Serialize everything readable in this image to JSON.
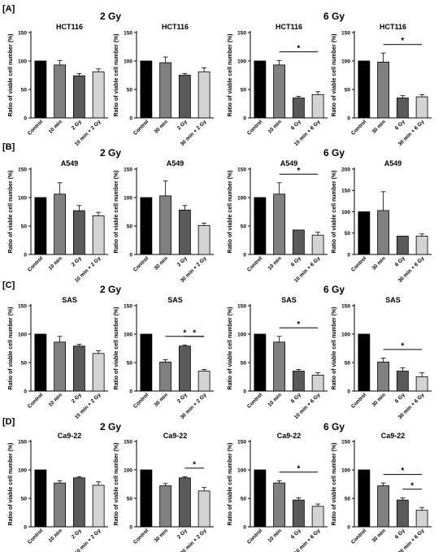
{
  "panels": [
    {
      "label": "[A]",
      "dose_left": "2 Gy",
      "dose_right": "6 Gy"
    },
    {
      "label": "[B]",
      "dose_left": "2 Gy",
      "dose_right": "6 Gy"
    },
    {
      "label": "[C]",
      "dose_left": "2 Gy",
      "dose_right": "6 Gy"
    },
    {
      "label": "[D]",
      "dose_left": "2 Gy",
      "dose_right": "6 Gy"
    }
  ],
  "colors": {
    "bars": [
      "#000000",
      "#808080",
      "#5a5a5a",
      "#d3d3d3"
    ]
  },
  "chart_data": [
    {
      "type": "bar",
      "title": "HCT116",
      "ylabel": "Ratio of viable cell number (%)",
      "ylim": [
        0,
        150
      ],
      "yticks": [
        0,
        50,
        100,
        150
      ],
      "categories": [
        "Control",
        "10 min",
        "2 Gy",
        "10 min + 2 Gy"
      ],
      "values": [
        100,
        93,
        74,
        81
      ],
      "errors": [
        0,
        8,
        4,
        5
      ],
      "significance": []
    },
    {
      "type": "bar",
      "title": "HCT116",
      "ylabel": "Ratio of viable cell number (%)",
      "ylim": [
        0,
        150
      ],
      "yticks": [
        0,
        50,
        100,
        150
      ],
      "categories": [
        "Control",
        "30 min",
        "2 Gy",
        "30 min + 2 Gy"
      ],
      "values": [
        100,
        97,
        75,
        81
      ],
      "errors": [
        0,
        10,
        3,
        7
      ],
      "significance": []
    },
    {
      "type": "bar",
      "title": "HCT116",
      "ylabel": "Ratio of viable cell number (%)",
      "ylim": [
        0,
        150
      ],
      "yticks": [
        0,
        50,
        100,
        150
      ],
      "categories": [
        "Control",
        "10 min",
        "6 Gy",
        "10 min + 6 Gy"
      ],
      "values": [
        100,
        93,
        35,
        41
      ],
      "errors": [
        0,
        8,
        3,
        5
      ],
      "significance": [
        {
          "from": 1,
          "to": 3,
          "label": "*"
        }
      ]
    },
    {
      "type": "bar",
      "title": "HCT116",
      "ylabel": "Ratio of viable cell number (%)",
      "ylim": [
        0,
        150
      ],
      "yticks": [
        0,
        50,
        100,
        150
      ],
      "categories": [
        "Control",
        "30 min",
        "6 Gy",
        "30 min + 6 Gy"
      ],
      "values": [
        100,
        98,
        35,
        37
      ],
      "errors": [
        0,
        16,
        4,
        4
      ],
      "significance": [
        {
          "from": 1,
          "to": 3,
          "label": "*"
        }
      ]
    },
    {
      "type": "bar",
      "title": "A549",
      "ylabel": "Ratio of viable cell number (%)",
      "ylim": [
        0,
        150
      ],
      "yticks": [
        0,
        50,
        100,
        150
      ],
      "categories": [
        "Control",
        "10 min",
        "2 Gy",
        "10 min + 2 Gy"
      ],
      "values": [
        100,
        106,
        77,
        68
      ],
      "errors": [
        0,
        20,
        9,
        6
      ],
      "significance": []
    },
    {
      "type": "bar",
      "title": "A549",
      "ylabel": "Ratio of viable cell number (%)",
      "ylim": [
        0,
        150
      ],
      "yticks": [
        0,
        50,
        100,
        150
      ],
      "categories": [
        "Control",
        "30 min",
        "2 Gy",
        "30 min + 2 Gy"
      ],
      "values": [
        100,
        103,
        78,
        51
      ],
      "errors": [
        0,
        26,
        8,
        4
      ],
      "significance": []
    },
    {
      "type": "bar",
      "title": "A549",
      "ylabel": "Ratio of viable cell number (%)",
      "ylim": [
        0,
        150
      ],
      "yticks": [
        0,
        50,
        100,
        150
      ],
      "categories": [
        "Control",
        "10 min",
        "6 Gy",
        "10 min + 6 Gy"
      ],
      "values": [
        100,
        106,
        43,
        34
      ],
      "errors": [
        0,
        20,
        0,
        5
      ],
      "significance": [
        {
          "from": 1,
          "to": 3,
          "label": "*"
        }
      ]
    },
    {
      "type": "bar",
      "title": "A549",
      "ylabel": "Ratio of viable cell number (%)",
      "ylim": [
        0,
        200
      ],
      "yticks": [
        0,
        50,
        100,
        150,
        200
      ],
      "categories": [
        "Control",
        "30 min",
        "6 Gy",
        "30 min + 6 Gy"
      ],
      "values": [
        100,
        103,
        43,
        43
      ],
      "errors": [
        0,
        44,
        0,
        5
      ],
      "significance": []
    },
    {
      "type": "bar",
      "title": "SAS",
      "ylabel": "Ratio of viable cell number (%)",
      "ylim": [
        0,
        150
      ],
      "yticks": [
        0,
        50,
        100,
        150
      ],
      "categories": [
        "Control",
        "10 min",
        "2 Gy",
        "10 min + 2 Gy"
      ],
      "values": [
        100,
        86,
        79,
        66
      ],
      "errors": [
        0,
        10,
        3,
        5
      ],
      "significance": []
    },
    {
      "type": "bar",
      "title": "SAS",
      "ylabel": "Ratio of viable cell number (%)",
      "ylim": [
        0,
        150
      ],
      "yticks": [
        0,
        50,
        100,
        150
      ],
      "categories": [
        "Control",
        "30 min",
        "2 Gy",
        "30 min + 2 Gy"
      ],
      "values": [
        100,
        51,
        79,
        35
      ],
      "errors": [
        0,
        4,
        2,
        3
      ],
      "significance": [
        {
          "from": 1,
          "to": 3,
          "label": "*"
        },
        {
          "from": 2,
          "to": 3,
          "label": "*"
        }
      ]
    },
    {
      "type": "bar",
      "title": "SAS",
      "ylabel": "Ratio of viable cell number (%)",
      "ylim": [
        0,
        150
      ],
      "yticks": [
        0,
        50,
        100,
        150
      ],
      "categories": [
        "Control",
        "10 min",
        "6 Gy",
        "10 min + 6 Gy"
      ],
      "values": [
        100,
        86,
        35,
        28
      ],
      "errors": [
        0,
        10,
        3,
        4
      ],
      "significance": [
        {
          "from": 1,
          "to": 3,
          "label": "*"
        }
      ]
    },
    {
      "type": "bar",
      "title": "SAS",
      "ylabel": "Ratio of viable cell number (%)",
      "ylim": [
        0,
        150
      ],
      "yticks": [
        0,
        50,
        100,
        150
      ],
      "categories": [
        "Control",
        "30 min",
        "6 Gy",
        "30 min + 6 Gy"
      ],
      "values": [
        100,
        51,
        35,
        25
      ],
      "errors": [
        0,
        7,
        6,
        7
      ],
      "significance": [
        {
          "from": 1,
          "to": 3,
          "label": "*"
        }
      ]
    },
    {
      "type": "bar",
      "title": "Ca9-22",
      "ylabel": "Ratio of viable cell number (%)",
      "ylim": [
        0,
        150
      ],
      "yticks": [
        0,
        50,
        100,
        150
      ],
      "categories": [
        "Control",
        "10 min",
        "2 Gy",
        "10 min + 2 Gy"
      ],
      "values": [
        100,
        77,
        86,
        73
      ],
      "errors": [
        0,
        4,
        2,
        6
      ],
      "significance": []
    },
    {
      "type": "bar",
      "title": "Ca9-22",
      "ylabel": "Ratio of viable cell number (%)",
      "ylim": [
        0,
        150
      ],
      "yticks": [
        0,
        50,
        100,
        150
      ],
      "categories": [
        "Control",
        "30 min",
        "2 Gy",
        "30 min + 2 Gy"
      ],
      "values": [
        100,
        72,
        86,
        63
      ],
      "errors": [
        0,
        4,
        2,
        6
      ],
      "significance": [
        {
          "from": 2,
          "to": 3,
          "label": "*"
        }
      ]
    },
    {
      "type": "bar",
      "title": "Ca9-22",
      "ylabel": "Ratio of viable cell number (%)",
      "ylim": [
        0,
        150
      ],
      "yticks": [
        0,
        50,
        100,
        150
      ],
      "categories": [
        "Control",
        "10 min",
        "6 Gy",
        "10 min + 6 Gy"
      ],
      "values": [
        100,
        77,
        47,
        36
      ],
      "errors": [
        0,
        4,
        4,
        4
      ],
      "significance": [
        {
          "from": 1,
          "to": 3,
          "label": "*"
        }
      ]
    },
    {
      "type": "bar",
      "title": "Ca9-22",
      "ylabel": "Ratio of viable cell number (%)",
      "ylim": [
        0,
        150
      ],
      "yticks": [
        0,
        50,
        100,
        150
      ],
      "categories": [
        "Control",
        "30 min",
        "6 Gy",
        "30 min + 6 Gy"
      ],
      "values": [
        100,
        72,
        47,
        29
      ],
      "errors": [
        0,
        5,
        4,
        5
      ],
      "significance": [
        {
          "from": 1,
          "to": 3,
          "label": "*"
        },
        {
          "from": 2,
          "to": 3,
          "label": "*"
        }
      ]
    }
  ]
}
